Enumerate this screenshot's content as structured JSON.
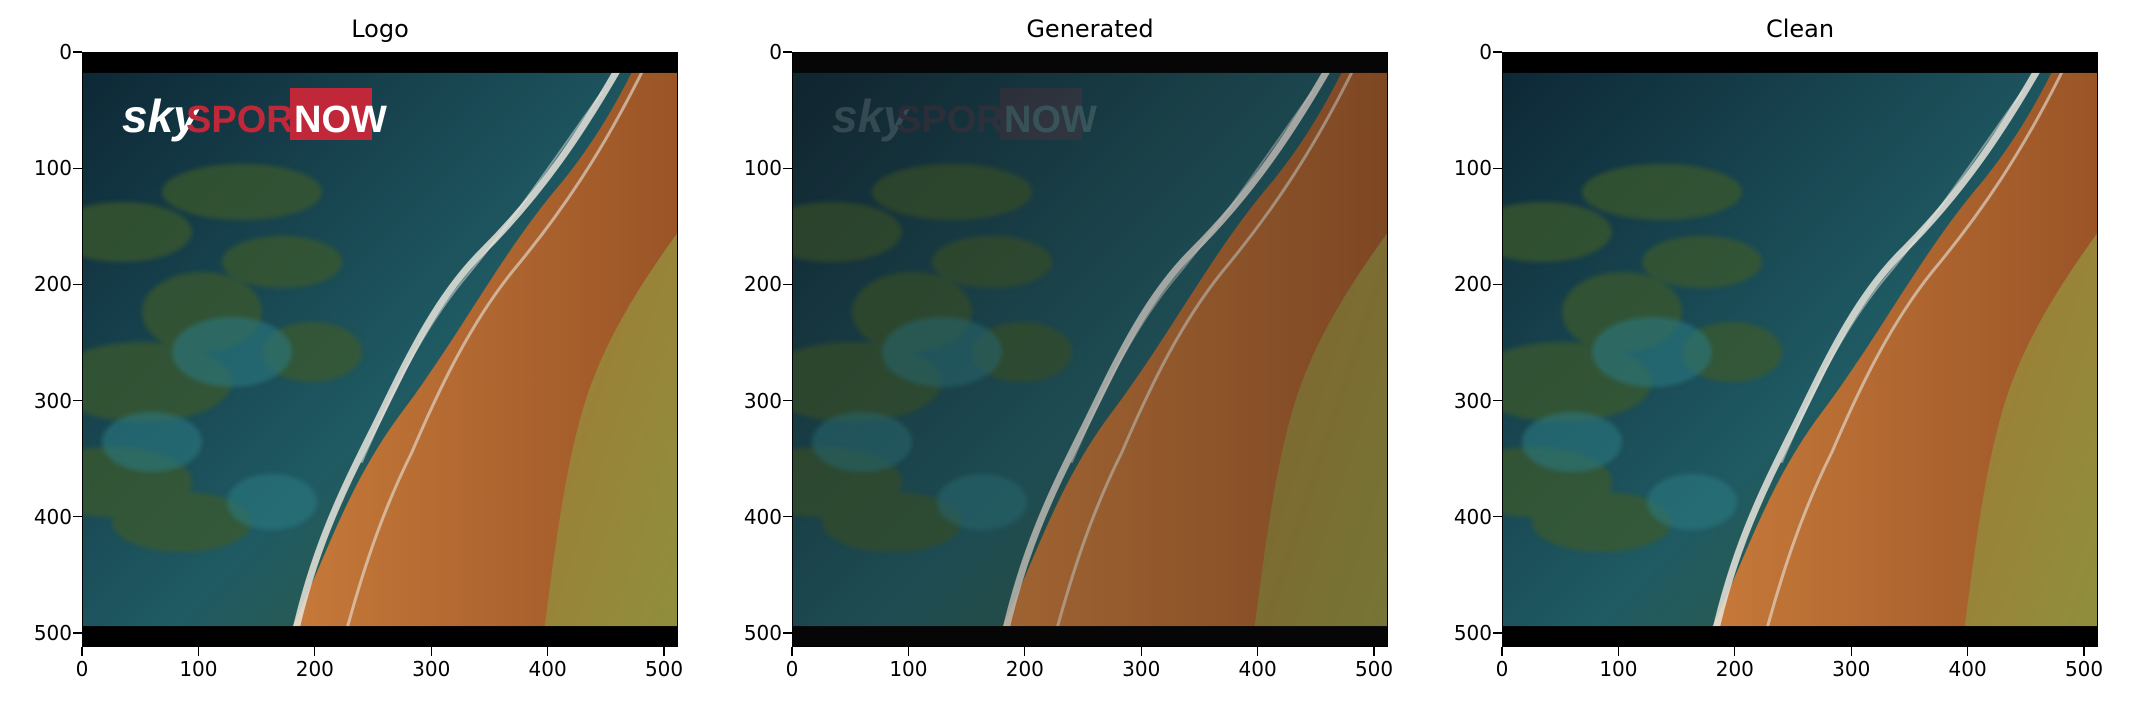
{
  "figure": {
    "panels": [
      {
        "title": "Logo",
        "has_logo": true,
        "logo_style": "solid",
        "logo": {
          "part1": "sky",
          "part2": "SPORT",
          "part3": "NOW"
        },
        "tone": "normal"
      },
      {
        "title": "Generated",
        "has_logo": true,
        "logo_style": "ghost",
        "logo": {
          "part1": "sky",
          "part2": "SPORT",
          "part3": "NOW"
        },
        "tone": "dim"
      },
      {
        "title": "Clean",
        "has_logo": false,
        "tone": "normal"
      }
    ],
    "x_ticks": [
      "0",
      "100",
      "200",
      "300",
      "400",
      "500"
    ],
    "y_ticks": [
      "0",
      "100",
      "200",
      "300",
      "400",
      "500"
    ],
    "image_extent": {
      "x_max": 512,
      "y_max": 512
    },
    "scene": "aerial view of coastline: dark teal sea on the left, white surf line, orange-brown rocks, olive-green land on the right; black letterbox bars top and bottom",
    "colors": {
      "sea_deep": "#0d2634",
      "sea_teal": "#1f5a63",
      "algae": "#3c5a2a",
      "surf": "#e8e4dc",
      "rock": "#b5652a",
      "land": "#8f8f3e",
      "bar": "#000000",
      "logo_red": "#c0283a",
      "logo_white": "#ffffff"
    }
  }
}
